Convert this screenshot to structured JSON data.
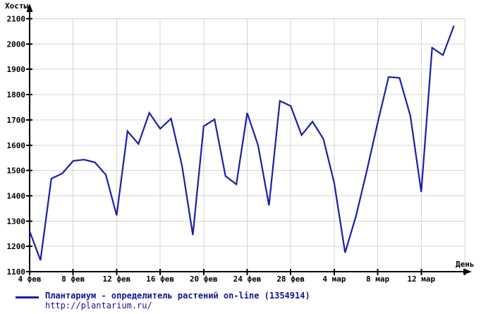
{
  "chart_data": {
    "type": "line",
    "title": "",
    "ylabel": "Хосты",
    "xlabel": "День",
    "grid": true,
    "legend_position": "bottom-left",
    "ylim": [
      1100,
      2100
    ],
    "y_tick_step": 100,
    "y_tick_labels": [
      "1100",
      "1200",
      "1300",
      "1400",
      "1500",
      "1600",
      "1700",
      "1800",
      "1900",
      "2000",
      "2100"
    ],
    "x_ticks": [
      {
        "label": "4 фев",
        "day": 0
      },
      {
        "label": "8 фев",
        "day": 4
      },
      {
        "label": "12 фев",
        "day": 8
      },
      {
        "label": "16 фев",
        "day": 12
      },
      {
        "label": "20 фев",
        "day": 16
      },
      {
        "label": "24 фев",
        "day": 20
      },
      {
        "label": "28 фев",
        "day": 24
      },
      {
        "label": "4 мар",
        "day": 28
      },
      {
        "label": "8 мар",
        "day": 32
      },
      {
        "label": "12 мар",
        "day": 36
      }
    ],
    "x_axis_days_total": 40,
    "x": [
      "4 фев",
      "5 фев",
      "6 фев",
      "7 фев",
      "8 фев",
      "9 фев",
      "10 фев",
      "11 фев",
      "12 фев",
      "13 фев",
      "14 фев",
      "15 фев",
      "16 фев",
      "17 фев",
      "18 фев",
      "19 фев",
      "20 фев",
      "21 фев",
      "22 фев",
      "23 фев",
      "24 фев",
      "25 фев",
      "26 фев",
      "27 фев",
      "28 фев",
      "1 мар",
      "2 мар",
      "3 мар",
      "4 мар",
      "5 мар",
      "6 мар",
      "7 мар",
      "8 мар",
      "9 мар",
      "10 мар",
      "11 мар",
      "12 мар",
      "13 мар",
      "14 мар",
      "15 мар"
    ],
    "series": [
      {
        "name": "Плантариум - определитель растений on-line (1354914)",
        "url": "http://plantarium.ru/",
        "color": "#1d1da9",
        "values": [
          1260,
          1145,
          1468,
          1488,
          1538,
          1543,
          1532,
          1483,
          1323,
          1655,
          1605,
          1728,
          1665,
          1705,
          1520,
          1245,
          1675,
          1702,
          1478,
          1445,
          1727,
          1600,
          1362,
          1775,
          1755,
          1640,
          1693,
          1625,
          1450,
          1175,
          1320,
          1500,
          1690,
          1870,
          1866,
          1715,
          1415,
          1985,
          1956,
          2072
        ]
      }
    ],
    "colors": {
      "line": "#1d1da9",
      "grid": "#d4d4d4",
      "axis": "#000000",
      "tick_text": "#000000",
      "legend_text": "#14148f",
      "background": "#ffffff"
    }
  }
}
